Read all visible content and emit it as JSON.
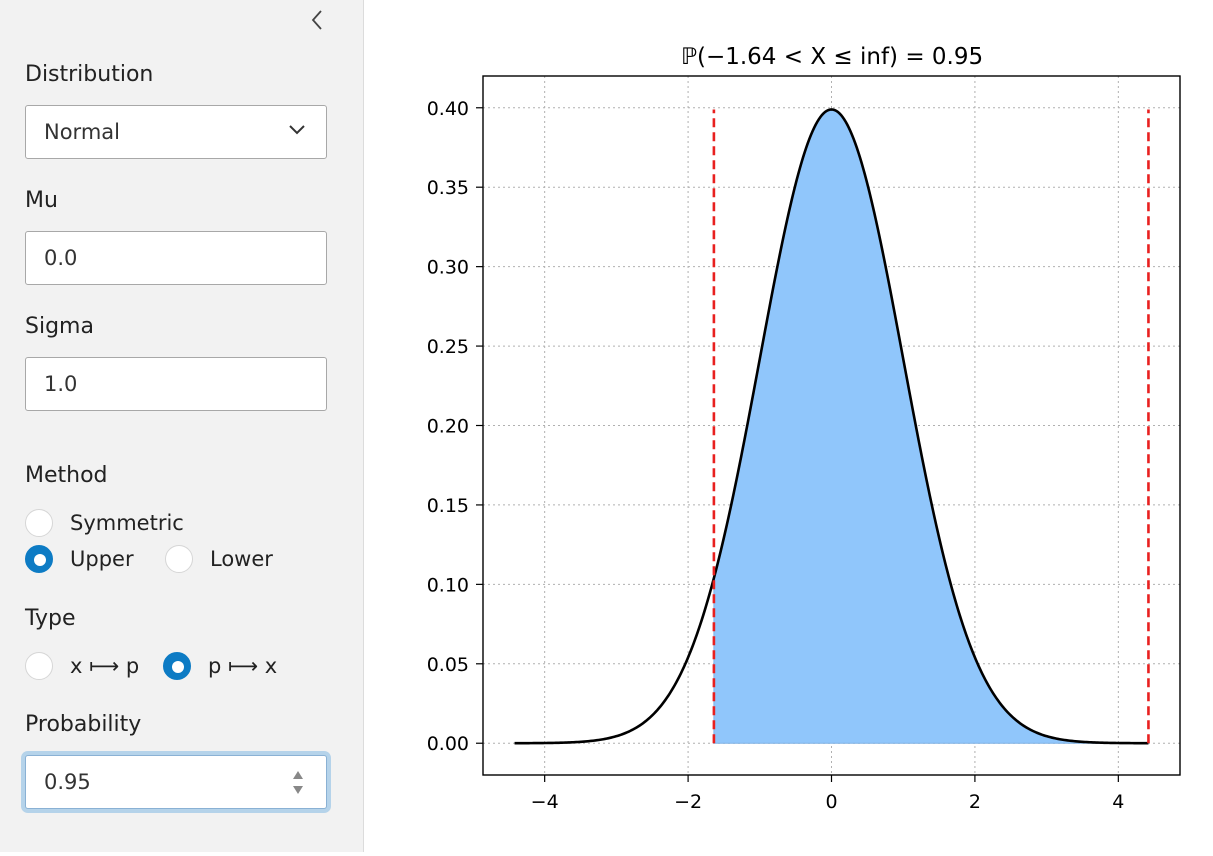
{
  "sidebar": {
    "collapse_icon": "chevron-left-icon",
    "distribution": {
      "label": "Distribution",
      "value": "Normal"
    },
    "mu": {
      "label": "Mu",
      "value": "0.0"
    },
    "sigma": {
      "label": "Sigma",
      "value": "1.0"
    },
    "method": {
      "label": "Method",
      "options": [
        {
          "label": "Symmetric",
          "checked": false
        },
        {
          "label": "Upper",
          "checked": true
        },
        {
          "label": "Lower",
          "checked": false
        }
      ]
    },
    "type": {
      "label": "Type",
      "options": [
        {
          "label": "x ⟼ p",
          "checked": false
        },
        {
          "label": "p ⟼ x",
          "checked": true
        }
      ]
    },
    "probability": {
      "label": "Probability",
      "value": "0.95"
    },
    "accent_color": "#0d7bc4"
  },
  "chart_data": {
    "type": "area",
    "title": "ℙ(−1.64 < X ≤ inf) = 0.95",
    "distribution": "normal",
    "mu": 0.0,
    "sigma": 1.0,
    "x_range": [
      -4.42,
      4.42
    ],
    "shaded_range": [
      -1.64,
      4.42
    ],
    "vlines": [
      -1.64,
      4.42
    ],
    "xlim": [
      -4.86,
      4.86
    ],
    "ylim": [
      -0.02,
      0.42
    ],
    "xticks": [
      -4,
      -2,
      0,
      2,
      4
    ],
    "xtick_labels": [
      "−4",
      "−2",
      "0",
      "2",
      "4"
    ],
    "yticks": [
      0.0,
      0.05,
      0.1,
      0.15,
      0.2,
      0.25,
      0.3,
      0.35,
      0.4
    ],
    "ytick_labels": [
      "0.00",
      "0.05",
      "0.10",
      "0.15",
      "0.20",
      "0.25",
      "0.30",
      "0.35",
      "0.40"
    ],
    "grid": true,
    "curve_color": "#000000",
    "fill_color": "#90c6fb",
    "vline_color": "#e8201f"
  }
}
